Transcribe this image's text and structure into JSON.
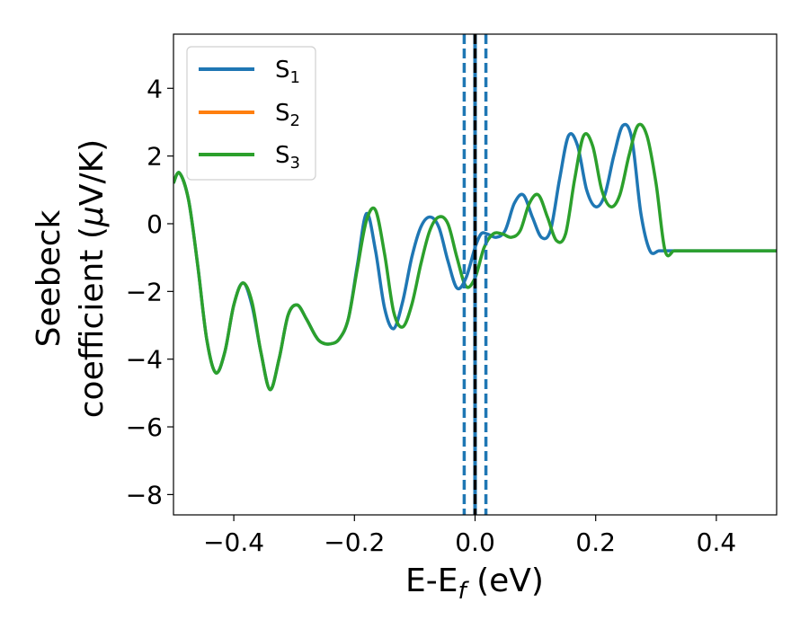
{
  "chart_data": {
    "type": "line",
    "title": "",
    "xlabel": "E-E_f (eV)",
    "xlabel_main": "E-E",
    "xlabel_sub": "f",
    "xlabel_rest": " (eV)",
    "ylabel": "Seebeck coefficient (μV/K)",
    "ylabel_line1": "Seebeck",
    "ylabel_line2": "coefficient  (",
    "ylabel_mu": "μ",
    "ylabel_line2_rest": "V/K)",
    "xlim": [
      -0.5,
      0.5
    ],
    "ylim": [
      -8.6,
      5.6
    ],
    "xticks": [
      -0.4,
      -0.2,
      0.0,
      0.2,
      0.4
    ],
    "xtick_labels": [
      "−0.4",
      "−0.2",
      "0.0",
      "0.2",
      "0.4"
    ],
    "yticks": [
      -8,
      -6,
      -4,
      -2,
      0,
      2,
      4
    ],
    "ytick_labels": [
      "−8",
      "−6",
      "−4",
      "−2",
      "0",
      "2",
      "4"
    ],
    "grid": false,
    "legend_position": "top-left",
    "series": [
      {
        "name": "S",
        "subscript": "1",
        "color": "#1f77b4",
        "x": [
          -0.5,
          -0.49,
          -0.475,
          -0.46,
          -0.445,
          -0.43,
          -0.415,
          -0.4,
          -0.385,
          -0.37,
          -0.355,
          -0.34,
          -0.325,
          -0.31,
          -0.295,
          -0.28,
          -0.265,
          -0.255,
          -0.24,
          -0.225,
          -0.21,
          -0.195,
          -0.18,
          -0.165,
          -0.15,
          -0.135,
          -0.12,
          -0.105,
          -0.09,
          -0.075,
          -0.06,
          -0.045,
          -0.03,
          -0.015,
          0.0,
          0.01,
          0.02,
          0.035,
          0.05,
          0.065,
          0.08,
          0.095,
          0.11,
          0.125,
          0.14,
          0.155,
          0.17,
          0.185,
          0.2,
          0.215,
          0.23,
          0.245,
          0.26,
          0.275,
          0.29,
          0.305,
          0.32,
          0.335,
          0.35,
          0.365,
          0.38,
          0.395,
          0.41,
          0.425,
          0.44,
          0.455,
          0.47,
          0.485,
          0.5
        ],
        "y": [
          1.2,
          1.5,
          0.7,
          -1.2,
          -3.4,
          -4.4,
          -3.8,
          -2.4,
          -1.75,
          -2.4,
          -3.8,
          -4.9,
          -4.0,
          -2.7,
          -2.4,
          -2.8,
          -3.3,
          -3.5,
          -3.55,
          -3.4,
          -2.8,
          -1.2,
          0.3,
          -0.8,
          -2.5,
          -3.1,
          -2.3,
          -1.0,
          -0.1,
          0.2,
          -0.1,
          -1.1,
          -1.9,
          -1.6,
          -0.7,
          -0.3,
          -0.3,
          -0.4,
          -0.2,
          0.6,
          0.85,
          0.2,
          -0.4,
          -0.2,
          1.3,
          2.6,
          2.3,
          1.0,
          0.5,
          0.85,
          2.0,
          2.9,
          2.5,
          0.3,
          -0.8,
          -0.8,
          -0.8,
          -0.8,
          -0.8,
          -0.8,
          -0.8,
          -0.8,
          -0.8,
          -0.8,
          -0.8,
          -0.8,
          -0.8,
          -0.8,
          -0.8
        ]
      },
      {
        "name": "S",
        "subscript": "2",
        "color": "#ff7f0e",
        "x": [],
        "y": []
      },
      {
        "name": "S",
        "subscript": "3",
        "color": "#2ca02c",
        "x": [
          -0.5,
          -0.49,
          -0.475,
          -0.46,
          -0.445,
          -0.43,
          -0.415,
          -0.4,
          -0.385,
          -0.37,
          -0.355,
          -0.34,
          -0.325,
          -0.31,
          -0.295,
          -0.28,
          -0.265,
          -0.255,
          -0.24,
          -0.225,
          -0.21,
          -0.195,
          -0.18,
          -0.165,
          -0.15,
          -0.135,
          -0.12,
          -0.105,
          -0.09,
          -0.075,
          -0.06,
          -0.045,
          -0.03,
          -0.015,
          0.0,
          0.015,
          0.03,
          0.045,
          0.06,
          0.075,
          0.09,
          0.105,
          0.12,
          0.135,
          0.15,
          0.165,
          0.18,
          0.195,
          0.21,
          0.225,
          0.24,
          0.255,
          0.27,
          0.285,
          0.3,
          0.315,
          0.33,
          0.345,
          0.36,
          0.375,
          0.39,
          0.405,
          0.42,
          0.435,
          0.45,
          0.465,
          0.48,
          0.49,
          0.5
        ],
        "y": [
          1.2,
          1.5,
          0.7,
          -1.2,
          -3.4,
          -4.4,
          -3.8,
          -2.4,
          -1.75,
          -2.3,
          -3.8,
          -4.9,
          -4.0,
          -2.7,
          -2.4,
          -2.8,
          -3.3,
          -3.5,
          -3.55,
          -3.4,
          -2.8,
          -1.3,
          0.1,
          0.4,
          -0.9,
          -2.6,
          -3.05,
          -2.4,
          -1.2,
          -0.2,
          0.2,
          0.0,
          -1.0,
          -1.85,
          -1.6,
          -0.7,
          -0.3,
          -0.3,
          -0.4,
          -0.2,
          0.6,
          0.85,
          0.2,
          -0.5,
          -0.3,
          1.3,
          2.6,
          2.3,
          1.0,
          0.5,
          0.85,
          2.0,
          2.9,
          2.6,
          1.2,
          -0.8,
          -0.8,
          -0.8,
          -0.8,
          -0.8,
          -0.8,
          -0.8,
          -0.8,
          -0.8,
          -0.8,
          -0.8,
          -0.8,
          -0.8,
          -0.8
        ]
      }
    ],
    "vlines": [
      {
        "x": -0.018,
        "color": "#1f77b4",
        "style": "dashed"
      },
      {
        "x": 0.0,
        "color": "#1f77b4",
        "style": "solid"
      },
      {
        "x": 0.0,
        "color": "#000000",
        "style": "dashed"
      },
      {
        "x": 0.018,
        "color": "#1f77b4",
        "style": "dashed"
      }
    ]
  }
}
